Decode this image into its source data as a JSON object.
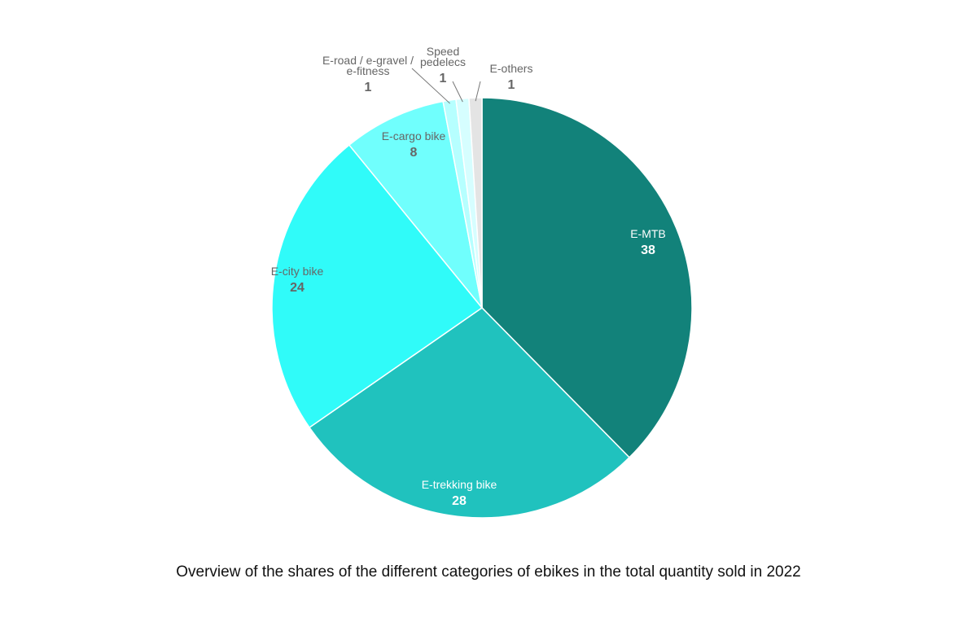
{
  "chart_data": {
    "type": "pie",
    "slices": [
      {
        "label": "E-MTB",
        "value": 38,
        "color": "#12827A",
        "label_color": "#ffffff"
      },
      {
        "label": "E-trekking bike",
        "value": 28,
        "color": "#20C2BE",
        "label_color": "#ffffff"
      },
      {
        "label": "E-city bike",
        "value": 24,
        "color": "#30FBF9",
        "label_color": "#666666"
      },
      {
        "label": "E-cargo bike",
        "value": 8,
        "color": "#70FFFD",
        "label_color": "#666666"
      },
      {
        "label": "E-road / e-gravel / e-fitness",
        "value": 1,
        "color": "#B6FFFF",
        "label_color": "#666666"
      },
      {
        "label": "Speed pedelecs",
        "value": 1,
        "color": "#D6FEFF",
        "label_color": "#666666"
      },
      {
        "label": "E-others",
        "value": 1,
        "color": "#E4E4E4",
        "label_color": "#666666"
      }
    ]
  },
  "caption": "Overview of the shares of the different categories of ebikes in the total quantity sold in 2022"
}
